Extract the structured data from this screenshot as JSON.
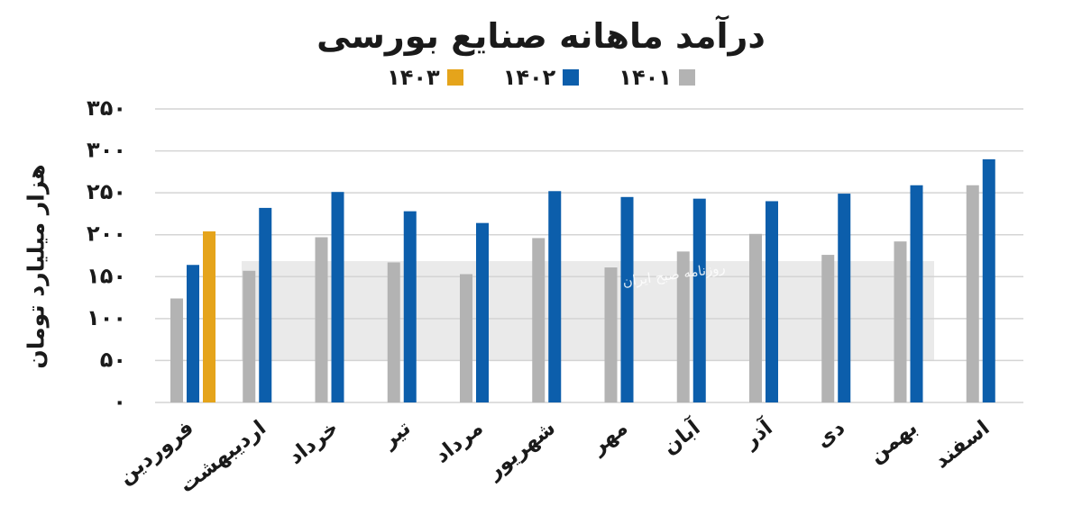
{
  "chart_data": {
    "type": "bar",
    "title": "درآمد ماهانه صنایع بورسی",
    "ylabel": "هزار میلیارد تومان",
    "xlabel": "",
    "ylim": [
      0,
      350
    ],
    "yticks": [
      0,
      50,
      100,
      150,
      200,
      250,
      300,
      350
    ],
    "ytick_labels": [
      "۰",
      "۵۰",
      "۱۰۰",
      "۱۵۰",
      "۲۰۰",
      "۲۵۰",
      "۳۰۰",
      "۳۵۰"
    ],
    "grid": true,
    "legend_position": "top-center",
    "categories": [
      "فروردین",
      "اردیبهشت",
      "خرداد",
      "تیر",
      "مرداد",
      "شهریور",
      "مهر",
      "آبان",
      "آذر",
      "دی",
      "بهمن",
      "اسفند"
    ],
    "series": [
      {
        "name": "۱۴۰۱",
        "color": "#b3b3b3",
        "values": [
          124,
          157,
          197,
          167,
          153,
          196,
          161,
          180,
          201,
          176,
          192,
          259
        ]
      },
      {
        "name": "۱۴۰۲",
        "color": "#0c5eab",
        "values": [
          164,
          232,
          251,
          228,
          214,
          252,
          245,
          243,
          240,
          249,
          259,
          290
        ]
      },
      {
        "name": "۱۴۰۳",
        "color": "#e5a41b",
        "values": [
          204,
          null,
          null,
          null,
          null,
          null,
          null,
          null,
          null,
          null,
          null,
          null
        ]
      }
    ]
  },
  "watermark": {
    "text": "روزنامه صبح ایران"
  }
}
